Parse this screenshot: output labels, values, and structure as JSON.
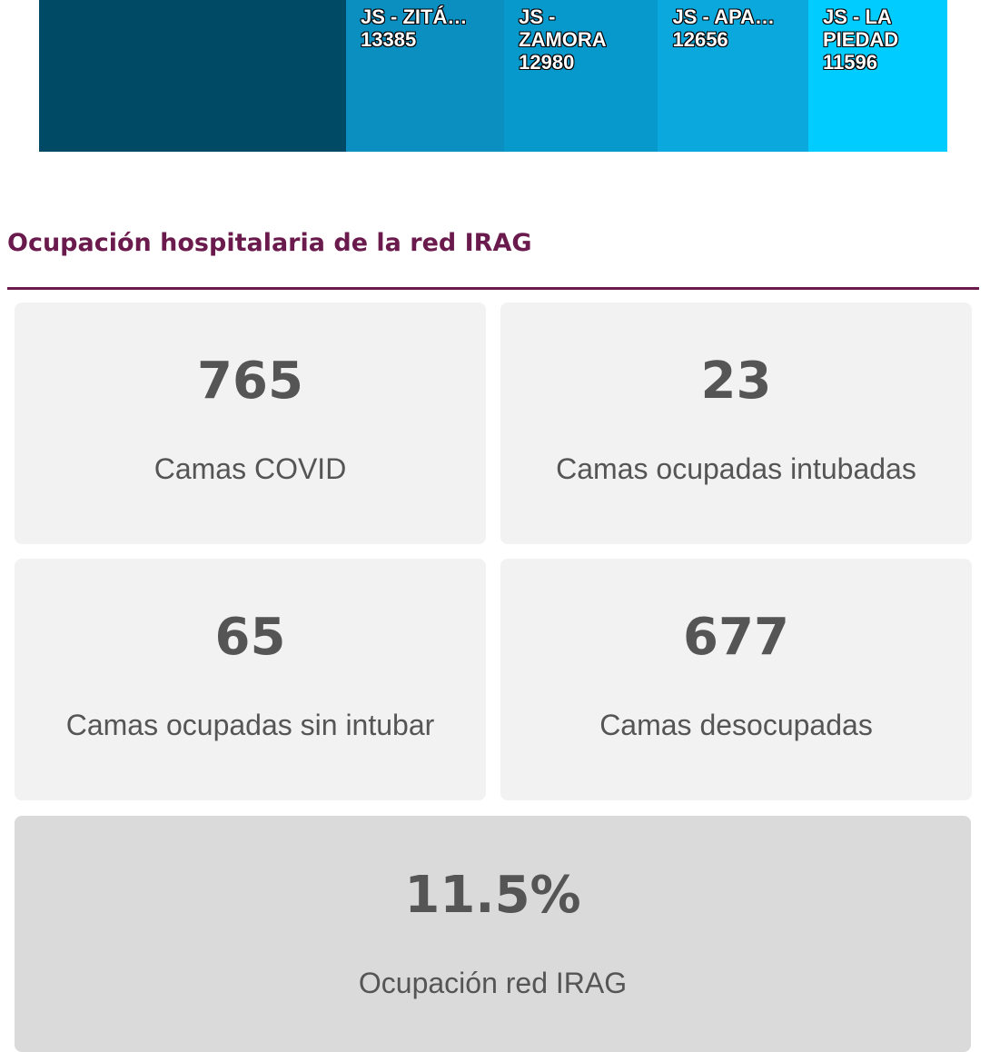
{
  "treemap": {
    "tiles": [
      {
        "label": "JS - ZITÁ…",
        "value": 13385,
        "color": "#0a8fc0"
      },
      {
        "label": "JS - ZAMORA",
        "value": 12980,
        "color": "#0899cc"
      },
      {
        "label": "JS - APA…",
        "value": 12656,
        "color": "#0aa8dc"
      },
      {
        "label": "JS - LA PIEDAD",
        "value": 11596,
        "color": "#00ccff"
      }
    ]
  },
  "section": {
    "title": "Ocupación hospitalaria de la red IRAG",
    "cards": [
      {
        "value": 765,
        "label": "Camas COVID"
      },
      {
        "value": 23,
        "label": "Camas ocupadas intubadas"
      },
      {
        "value": 65,
        "label": "Camas ocupadas sin intubar"
      },
      {
        "value": 677,
        "label": "Camas desocupadas"
      }
    ],
    "summary": {
      "value": "11.5%",
      "label": "Ocupación red IRAG"
    }
  }
}
